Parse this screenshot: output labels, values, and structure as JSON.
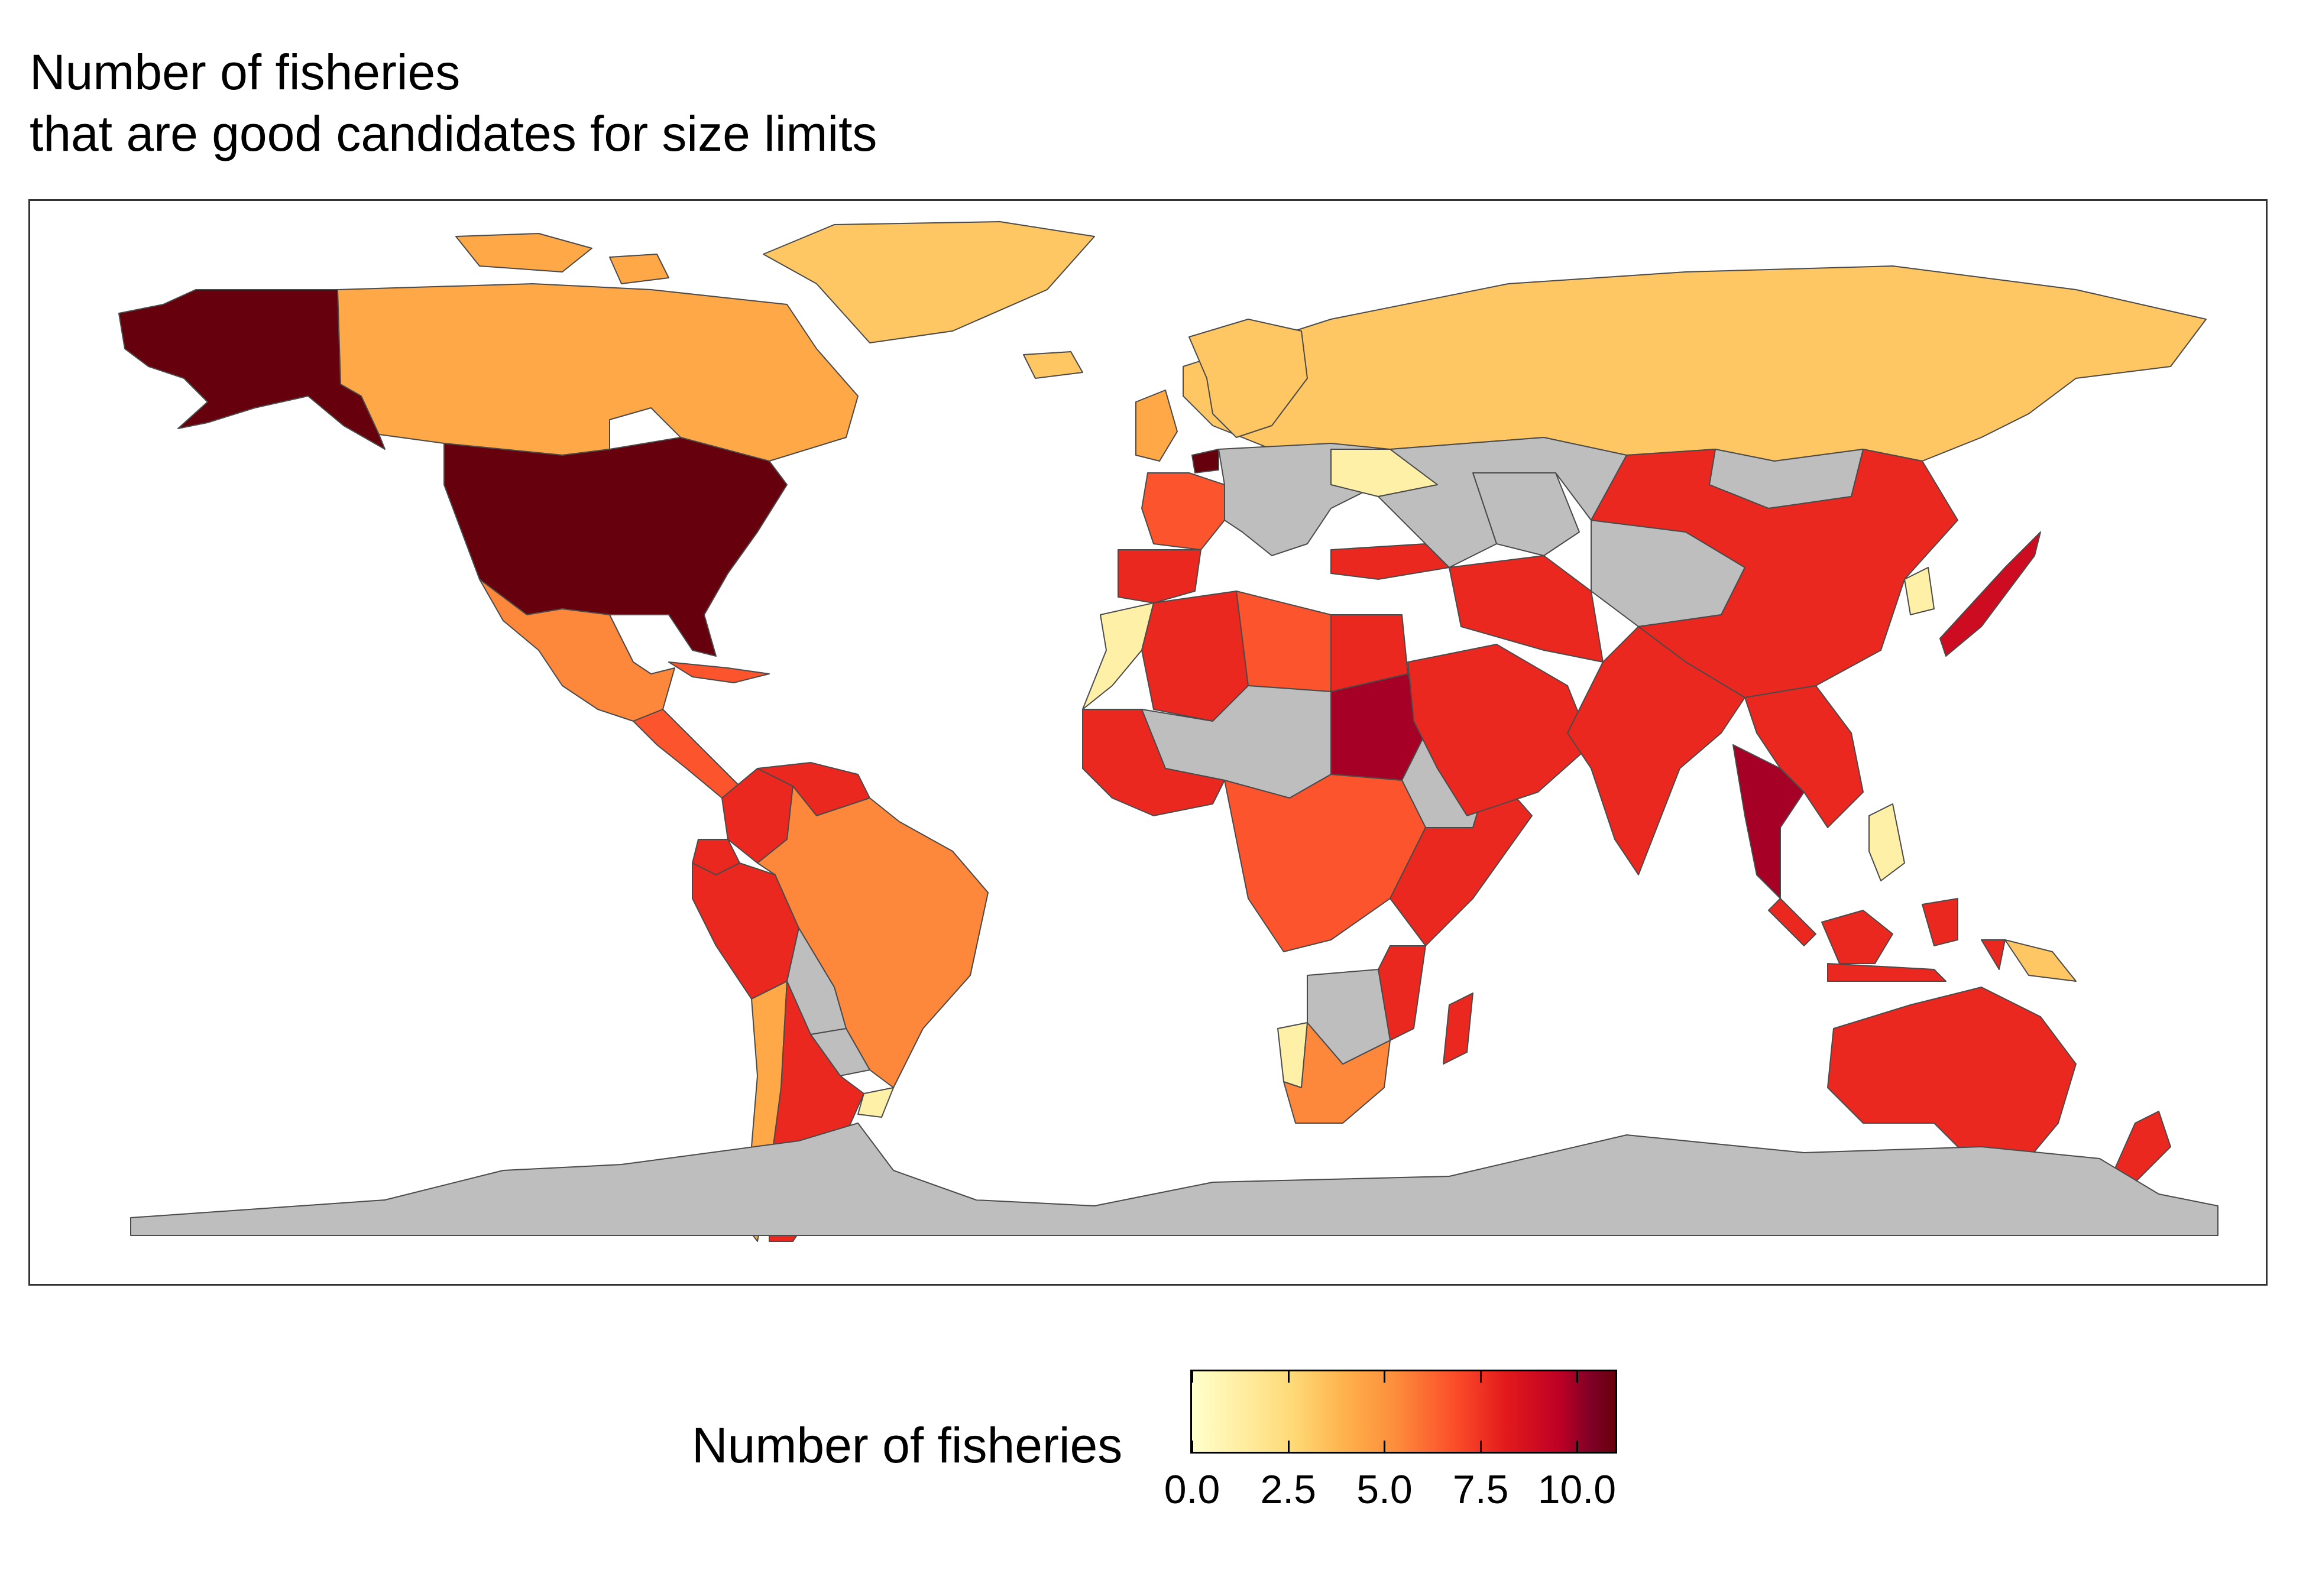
{
  "title": {
    "line1": "Number of fisheries",
    "line2": "that are good candidates for size limits"
  },
  "legend": {
    "title": "Number of fisheries",
    "ticks": [
      "0.0",
      "2.5",
      "5.0",
      "7.5",
      "10.0"
    ],
    "tick_values": [
      0,
      2.5,
      5,
      7.5,
      10
    ],
    "range": [
      0,
      11
    ],
    "colors": [
      "#ffffcc",
      "#ffeda0",
      "#fed976",
      "#feb24c",
      "#fd8d3c",
      "#fc4e2a",
      "#e31a1c",
      "#bd0026",
      "#800026",
      "#67000d"
    ],
    "na_color": "#bebebe",
    "placement": "bottom"
  },
  "chart_data": {
    "type": "choropleth",
    "value_label": "Number of fisheries",
    "regions": [
      {
        "name": "Alaska",
        "value": 11
      },
      {
        "name": "Canada",
        "value": 4
      },
      {
        "name": "United States",
        "value": 11
      },
      {
        "name": "Greenland",
        "value": 3
      },
      {
        "name": "Mexico",
        "value": 5
      },
      {
        "name": "Central America",
        "value": 6
      },
      {
        "name": "Caribbean",
        "value": 6
      },
      {
        "name": "Colombia",
        "value": 7
      },
      {
        "name": "Venezuela",
        "value": 7
      },
      {
        "name": "Ecuador",
        "value": 7
      },
      {
        "name": "Peru",
        "value": 7
      },
      {
        "name": "Brazil",
        "value": 5
      },
      {
        "name": "Bolivia",
        "value": null
      },
      {
        "name": "Paraguay",
        "value": null
      },
      {
        "name": "Chile",
        "value": 4
      },
      {
        "name": "Argentina",
        "value": 7
      },
      {
        "name": "Uruguay",
        "value": 1
      },
      {
        "name": "Russia",
        "value": 3
      },
      {
        "name": "Scandinavia",
        "value": 3
      },
      {
        "name": "United Kingdom",
        "value": 4
      },
      {
        "name": "Iceland",
        "value": 3
      },
      {
        "name": "Iberia",
        "value": 7
      },
      {
        "name": "France",
        "value": 6
      },
      {
        "name": "Netherlands",
        "value": 11
      },
      {
        "name": "Central Europe",
        "value": null
      },
      {
        "name": "Ukraine",
        "value": 1
      },
      {
        "name": "Turkey",
        "value": 7
      },
      {
        "name": "Morocco",
        "value": 1
      },
      {
        "name": "Algeria",
        "value": 7
      },
      {
        "name": "Libya",
        "value": 6
      },
      {
        "name": "Egypt",
        "value": 7
      },
      {
        "name": "Sudan",
        "value": 9
      },
      {
        "name": "Sahel",
        "value": null
      },
      {
        "name": "West Africa",
        "value": 7
      },
      {
        "name": "Central Africa",
        "value": 6
      },
      {
        "name": "East Africa",
        "value": 7
      },
      {
        "name": "Namibia",
        "value": 1
      },
      {
        "name": "South Africa",
        "value": 5
      },
      {
        "name": "Southern Africa",
        "value": null
      },
      {
        "name": "Madagascar",
        "value": 7
      },
      {
        "name": "Arabian Peninsula",
        "value": 7
      },
      {
        "name": "Iran",
        "value": 7
      },
      {
        "name": "Central Asia",
        "value": null
      },
      {
        "name": "Mongolia",
        "value": null
      },
      {
        "name": "China",
        "value": 7
      },
      {
        "name": "India",
        "value": 7
      },
      {
        "name": "Southeast Asia",
        "value": 7
      },
      {
        "name": "Thailand",
        "value": 9
      },
      {
        "name": "Philippines",
        "value": 1
      },
      {
        "name": "Indonesia",
        "value": 7
      },
      {
        "name": "Papua New Guinea",
        "value": 3
      },
      {
        "name": "Japan",
        "value": 8
      },
      {
        "name": "Korea",
        "value": 1
      },
      {
        "name": "Australia",
        "value": 7
      },
      {
        "name": "New Zealand",
        "value": 7
      },
      {
        "name": "Antarctica",
        "value": null
      }
    ]
  }
}
